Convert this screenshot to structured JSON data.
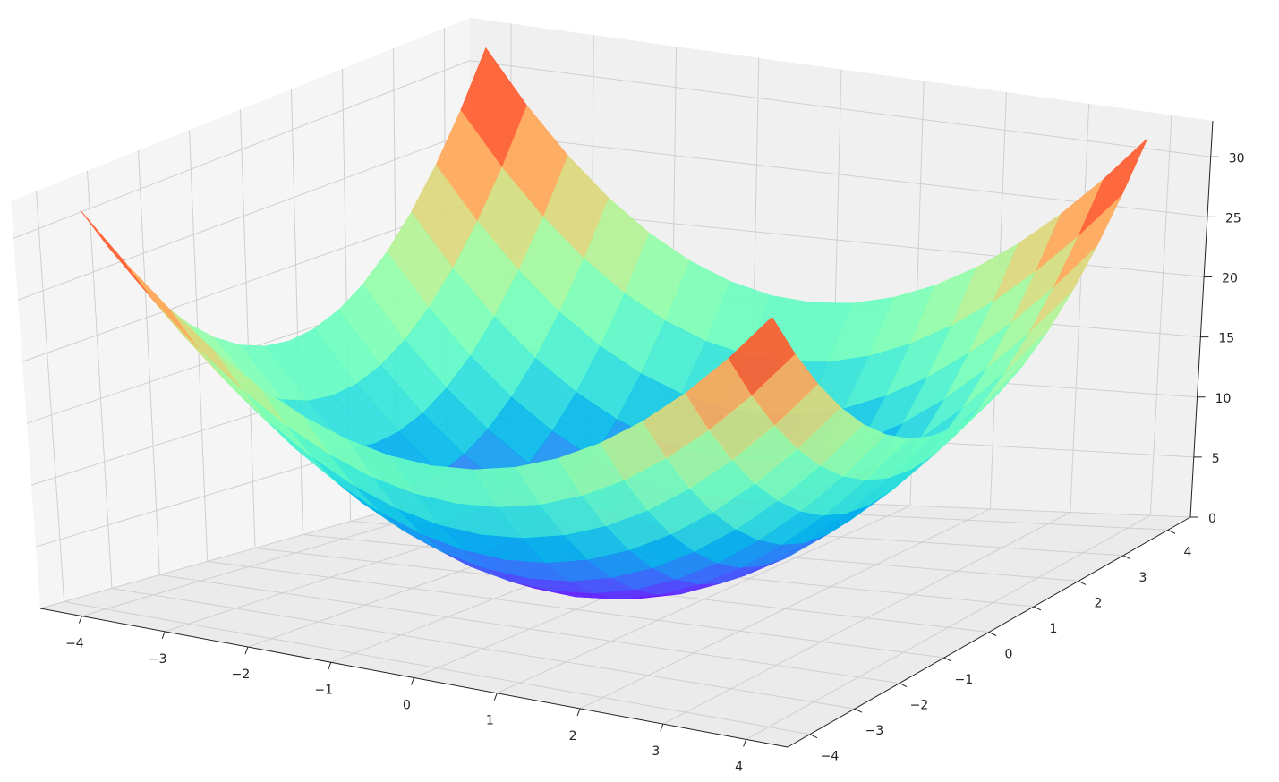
{
  "chart_data": {
    "type": "surface",
    "colormap": "rainbow",
    "grid": true,
    "x": [
      -4,
      -3.5,
      -3,
      -2.5,
      -2,
      -1.5,
      -1,
      -0.5,
      0,
      0.5,
      1,
      1.5,
      2,
      2.5,
      3,
      3.5,
      4
    ],
    "y": [
      -4,
      -3.5,
      -3,
      -2.5,
      -2,
      -1.5,
      -1,
      -0.5,
      0,
      0.5,
      1,
      1.5,
      2,
      2.5,
      3,
      3.5,
      4
    ],
    "z": [
      [
        32,
        28.25,
        25,
        22.25,
        20,
        18.25,
        17,
        16.25,
        16,
        16.25,
        17,
        18.25,
        20,
        22.25,
        25,
        28.25,
        32
      ],
      [
        28.25,
        24.5,
        21.25,
        18.5,
        16.25,
        14.5,
        13.25,
        12.5,
        12.25,
        12.5,
        13.25,
        14.5,
        16.25,
        18.5,
        21.25,
        24.5,
        28.25
      ],
      [
        25,
        21.25,
        18,
        15.25,
        13,
        11.25,
        10,
        9.25,
        9,
        9.25,
        10,
        11.25,
        13,
        15.25,
        18,
        21.25,
        25
      ],
      [
        22.25,
        18.5,
        15.25,
        12.5,
        10.25,
        8.5,
        7.25,
        6.5,
        6.25,
        6.5,
        7.25,
        8.5,
        10.25,
        12.5,
        15.25,
        18.5,
        22.25
      ],
      [
        20,
        16.25,
        13,
        10.25,
        8,
        6.25,
        5,
        4.25,
        4,
        4.25,
        5,
        6.25,
        8,
        10.25,
        13,
        16.25,
        20
      ],
      [
        18.25,
        14.5,
        11.25,
        8.5,
        6.25,
        4.5,
        3.25,
        2.5,
        2.25,
        2.5,
        3.25,
        4.5,
        6.25,
        8.5,
        11.25,
        14.5,
        18.25
      ],
      [
        17,
        13.25,
        10,
        7.25,
        5,
        3.25,
        2,
        1.25,
        1,
        1.25,
        2,
        3.25,
        5,
        7.25,
        10,
        13.25,
        17
      ],
      [
        16.25,
        12.5,
        9.25,
        6.5,
        4.25,
        2.5,
        1.25,
        0.5,
        0.25,
        0.5,
        1.25,
        2.5,
        4.25,
        6.5,
        9.25,
        12.5,
        16.25
      ],
      [
        16,
        12.25,
        9,
        6.25,
        4,
        2.25,
        1,
        0.25,
        0,
        0.25,
        1,
        2.25,
        4,
        6.25,
        9,
        12.25,
        16
      ],
      [
        16.25,
        12.5,
        9.25,
        6.5,
        4.25,
        2.5,
        1.25,
        0.5,
        0.25,
        0.5,
        1.25,
        2.5,
        4.25,
        6.5,
        9.25,
        12.5,
        16.25
      ],
      [
        17,
        13.25,
        10,
        7.25,
        5,
        3.25,
        2,
        1.25,
        1,
        1.25,
        2,
        3.25,
        5,
        7.25,
        10,
        13.25,
        17
      ],
      [
        18.25,
        14.5,
        11.25,
        8.5,
        6.25,
        4.5,
        3.25,
        2.5,
        2.25,
        2.5,
        3.25,
        4.5,
        6.25,
        8.5,
        11.25,
        14.5,
        18.25
      ],
      [
        20,
        16.25,
        13,
        10.25,
        8,
        6.25,
        5,
        4.25,
        4,
        4.25,
        5,
        6.25,
        8,
        10.25,
        13,
        16.25,
        20
      ],
      [
        22.25,
        18.5,
        15.25,
        12.5,
        10.25,
        8.5,
        7.25,
        6.5,
        6.25,
        6.5,
        7.25,
        8.5,
        10.25,
        12.5,
        15.25,
        18.5,
        22.25
      ],
      [
        25,
        21.25,
        18,
        15.25,
        13,
        11.25,
        10,
        9.25,
        9,
        9.25,
        10,
        11.25,
        13,
        15.25,
        18,
        21.25,
        25
      ],
      [
        28.25,
        24.5,
        21.25,
        18.5,
        16.25,
        14.5,
        13.25,
        12.5,
        12.25,
        12.5,
        13.25,
        14.5,
        16.25,
        18.5,
        21.25,
        24.5,
        28.25
      ],
      [
        32,
        28.25,
        25,
        22.25,
        20,
        18.25,
        17,
        16.25,
        16,
        16.25,
        17,
        18.25,
        20,
        22.25,
        25,
        28.25,
        32
      ]
    ],
    "xlim": [
      -4.5,
      4.5
    ],
    "ylim": [
      -4.5,
      4.5
    ],
    "zlim": [
      0,
      33
    ],
    "xticks": [
      {
        "value": -4,
        "label": "−4"
      },
      {
        "value": -3,
        "label": "−3"
      },
      {
        "value": -2,
        "label": "−2"
      },
      {
        "value": -1,
        "label": "−1"
      },
      0,
      1,
      2,
      3,
      4
    ],
    "yticks": [
      {
        "value": -4,
        "label": "−4"
      },
      {
        "value": -3,
        "label": "−3"
      },
      {
        "value": -2,
        "label": "−2"
      },
      {
        "value": -1,
        "label": "−1"
      },
      0,
      1,
      2,
      3,
      4
    ],
    "zticks": [
      0,
      5,
      10,
      15,
      20,
      25,
      30
    ]
  }
}
